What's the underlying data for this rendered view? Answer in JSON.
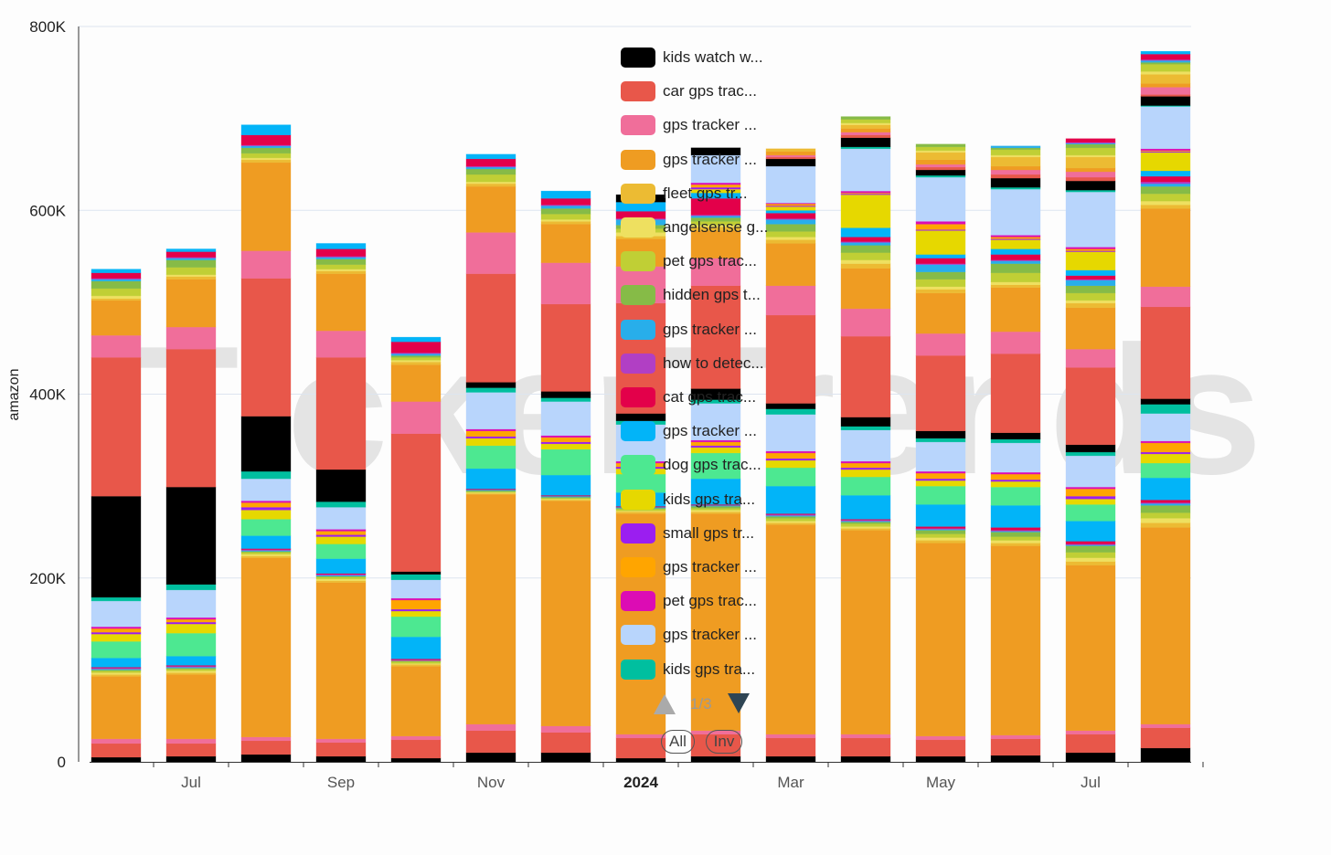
{
  "watermark": "TickerTrends",
  "chart_data": {
    "type": "bar",
    "stacked": true,
    "ylabel": "amazon",
    "ylim": [
      0,
      800000
    ],
    "yticks": [
      {
        "v": 0,
        "label": "0"
      },
      {
        "v": 200000,
        "label": "200K"
      },
      {
        "v": 400000,
        "label": "400K"
      },
      {
        "v": 600000,
        "label": "600K"
      },
      {
        "v": 800000,
        "label": "800K"
      }
    ],
    "x_tick_labels": [
      null,
      "Jul",
      null,
      "Sep",
      null,
      "Nov",
      null,
      "2024",
      null,
      "Mar",
      null,
      "May",
      null,
      "Jul",
      null
    ],
    "value_unit": "thousands",
    "palette": [
      "#000000",
      "#e8574a",
      "#f06e9a",
      "#ef9c22",
      "#ecbb33",
      "#eee060",
      "#c0cf35",
      "#86bb47",
      "#28aeea",
      "#b13fc4",
      "#e3004a",
      "#02b4f8",
      "#4de891",
      "#e6d800",
      "#9b1ef0",
      "#ffa500",
      "#dc0cb4",
      "#b8d5fc",
      "#00bf9f"
    ],
    "series": [
      {
        "name": "kids watch w...",
        "values": [
          5,
          6,
          8,
          6,
          4,
          10,
          10,
          4,
          6,
          6,
          6,
          6,
          7,
          10,
          15
        ]
      },
      {
        "name": "car gps trac...",
        "values": [
          15,
          14,
          15,
          15,
          20,
          24,
          22,
          22,
          24,
          20,
          20,
          18,
          18,
          20,
          22
        ]
      },
      {
        "name": "gps tracker ...",
        "values": [
          5,
          5,
          4,
          4,
          4,
          7,
          7,
          4,
          4,
          4,
          4,
          4,
          4,
          4,
          4
        ]
      },
      {
        "name": "gps tracker ...",
        "values": [
          68,
          70,
          195,
          170,
          76,
          250,
          245,
          240,
          236,
          228,
          222,
          210,
          206,
          180,
          214
        ]
      },
      {
        "name": "fleet gps tr...",
        "values": [
          2,
          2,
          2,
          2,
          2,
          1,
          1,
          2,
          2,
          2,
          2,
          3,
          3,
          4,
          5
        ]
      },
      {
        "name": "angelsense g...",
        "values": [
          2,
          2,
          2,
          2,
          1,
          1,
          1,
          1,
          2,
          2,
          2,
          3,
          3,
          4,
          5
        ]
      },
      {
        "name": "pet gps trac...",
        "values": [
          2,
          2,
          2,
          2,
          2,
          1,
          1,
          2,
          2,
          3,
          3,
          4,
          4,
          6,
          6
        ]
      },
      {
        "name": "hidden gps t...",
        "values": [
          1,
          1,
          1,
          1,
          1,
          1,
          1,
          1,
          2,
          2,
          2,
          4,
          5,
          7,
          8
        ]
      },
      {
        "name": "gps tracker ...",
        "values": [
          1,
          1,
          1,
          1,
          0,
          1,
          1,
          1,
          1,
          1,
          1,
          1,
          1,
          1,
          2
        ]
      },
      {
        "name": "how to detec...",
        "values": [
          1,
          1,
          1,
          1,
          1,
          0,
          0,
          0,
          0,
          1,
          1,
          1,
          1,
          1,
          1
        ]
      },
      {
        "name": "cat gps trac...",
        "values": [
          1,
          1,
          1,
          1,
          1,
          1,
          1,
          1,
          1,
          1,
          1,
          2,
          3,
          3,
          3
        ]
      },
      {
        "name": "gps tracker ...",
        "values": [
          10,
          10,
          14,
          16,
          24,
          22,
          22,
          15,
          28,
          30,
          26,
          24,
          24,
          22,
          24
        ]
      },
      {
        "name": "dog gps trac...",
        "values": [
          18,
          25,
          18,
          16,
          22,
          25,
          28,
          20,
          28,
          20,
          20,
          20,
          20,
          18,
          16
        ]
      },
      {
        "name": "kids gps tra...",
        "values": [
          8,
          10,
          10,
          8,
          6,
          8,
          6,
          6,
          6,
          8,
          8,
          6,
          6,
          6,
          10
        ]
      },
      {
        "name": "small gps tr...",
        "values": [
          2,
          2,
          3,
          2,
          2,
          2,
          2,
          2,
          2,
          2,
          2,
          2,
          2,
          3,
          2
        ]
      },
      {
        "name": "gps tracker ...",
        "values": [
          4,
          3,
          5,
          4,
          10,
          6,
          5,
          4,
          4,
          6,
          5,
          6,
          6,
          8,
          10
        ]
      },
      {
        "name": "pet gps trac...",
        "values": [
          2,
          2,
          2,
          2,
          2,
          2,
          2,
          2,
          2,
          2,
          2,
          2,
          2,
          2,
          2
        ]
      },
      {
        "name": "gps tracker ...",
        "values": [
          28,
          30,
          24,
          24,
          20,
          40,
          37,
          40,
          40,
          40,
          34,
          32,
          32,
          34,
          30
        ]
      },
      {
        "name": "kids gps tra...",
        "values": [
          4,
          6,
          8,
          6,
          6,
          5,
          4,
          4,
          4,
          6,
          4,
          4,
          4,
          4,
          10
        ]
      },
      {
        "name": "",
        "values": [
          110,
          106,
          60,
          35,
          3,
          6,
          7,
          8,
          12,
          6,
          10,
          8,
          7,
          8,
          6
        ]
      },
      {
        "name": "",
        "values": [
          151,
          150,
          150,
          122,
          150,
          118,
          95,
          120,
          112,
          96,
          88,
          82,
          86,
          84,
          100
        ]
      },
      {
        "name": "",
        "values": [
          24,
          24,
          30,
          29,
          35,
          45,
          45,
          40,
          30,
          32,
          30,
          24,
          24,
          20,
          22
        ]
      },
      {
        "name": "",
        "values": [
          38,
          52,
          96,
          62,
          40,
          50,
          42,
          30,
          30,
          46,
          44,
          44,
          48,
          45,
          85
        ]
      },
      {
        "name": "",
        "values": [
          2,
          3,
          3,
          3,
          3,
          3,
          3,
          3,
          4,
          4,
          5,
          4,
          3,
          5,
          4
        ]
      },
      {
        "name": "",
        "values": [
          3,
          2,
          2,
          2,
          2,
          2,
          2,
          4,
          2,
          3,
          4,
          3,
          3,
          3,
          4
        ]
      },
      {
        "name": "",
        "values": [
          8,
          8,
          5,
          5,
          3,
          8,
          6,
          4,
          4,
          6,
          8,
          8,
          10,
          8,
          8
        ]
      },
      {
        "name": "",
        "values": [
          8,
          8,
          6,
          6,
          2,
          6,
          6,
          4,
          4,
          8,
          8,
          8,
          10,
          8,
          8
        ]
      },
      {
        "name": "",
        "values": [
          2,
          2,
          2,
          2,
          2,
          2,
          3,
          6,
          2,
          5,
          3,
          8,
          3,
          6,
          3
        ]
      },
      {
        "name": "",
        "values": [
          1,
          1,
          1,
          1,
          1,
          1,
          1,
          1,
          1,
          1,
          1,
          1,
          1,
          1,
          2
        ]
      },
      {
        "name": "",
        "values": [
          6,
          6,
          11,
          8,
          12,
          8,
          7,
          8,
          18,
          6,
          5,
          6,
          6,
          4,
          6
        ]
      },
      {
        "name": "",
        "values": [
          4,
          3,
          11,
          6,
          5,
          5,
          8,
          10,
          6,
          3,
          10,
          4,
          6,
          6,
          6
        ]
      },
      {
        "name": "",
        "values": [
          0,
          0,
          0,
          0,
          0,
          0,
          0,
          0,
          0,
          0,
          0,
          0,
          0,
          0,
          0
        ]
      },
      {
        "name": "",
        "values": [
          0,
          0,
          0,
          0,
          0,
          0,
          0,
          0,
          4,
          4,
          36,
          26,
          10,
          20,
          20
        ]
      },
      {
        "name": "",
        "values": [
          0,
          0,
          0,
          0,
          0,
          0,
          0,
          0,
          2,
          1,
          1,
          1,
          1,
          1,
          1
        ]
      },
      {
        "name": "",
        "values": [
          0,
          0,
          0,
          0,
          0,
          0,
          0,
          0,
          3,
          2,
          1,
          6,
          2,
          2,
          1
        ]
      },
      {
        "name": "",
        "values": [
          0,
          0,
          0,
          0,
          0,
          0,
          0,
          0,
          2,
          1,
          2,
          3,
          2,
          2,
          2
        ]
      },
      {
        "name": "",
        "values": [
          0,
          0,
          0,
          0,
          0,
          0,
          0,
          0,
          30,
          40,
          46,
          48,
          50,
          60,
          46
        ]
      },
      {
        "name": "",
        "values": [
          0,
          0,
          0,
          0,
          0,
          0,
          0,
          0,
          0,
          0,
          2,
          2,
          2,
          2,
          1
        ]
      },
      {
        "name": "",
        "values": [
          0,
          0,
          0,
          0,
          0,
          0,
          0,
          8,
          8,
          8,
          10,
          6,
          10,
          10,
          10
        ]
      },
      {
        "name": "",
        "values": [
          0,
          0,
          0,
          0,
          0,
          0,
          0,
          0,
          0,
          2,
          3,
          3,
          4,
          4,
          2
        ]
      },
      {
        "name": "",
        "values": [
          0,
          0,
          0,
          0,
          0,
          0,
          0,
          0,
          0,
          2,
          3,
          3,
          5,
          6,
          8
        ]
      },
      {
        "name": "",
        "values": [
          0,
          0,
          0,
          0,
          0,
          0,
          0,
          0,
          0,
          4,
          4,
          5,
          4,
          4,
          4
        ]
      },
      {
        "name": "",
        "values": [
          0,
          0,
          0,
          0,
          0,
          0,
          0,
          0,
          0,
          3,
          4,
          8,
          10,
          12,
          10
        ]
      },
      {
        "name": "",
        "values": [
          0,
          0,
          0,
          0,
          0,
          0,
          0,
          0,
          0,
          0,
          2,
          2,
          2,
          2,
          3
        ]
      },
      {
        "name": "",
        "values": [
          0,
          0,
          0,
          0,
          0,
          0,
          0,
          0,
          0,
          0,
          4,
          4,
          6,
          8,
          8
        ]
      },
      {
        "name": "",
        "values": [
          0,
          0,
          0,
          0,
          0,
          0,
          0,
          0,
          0,
          0,
          3,
          3,
          2,
          4,
          2
        ]
      },
      {
        "name": "",
        "values": [
          0,
          0,
          0,
          0,
          0,
          0,
          0,
          0,
          0,
          0,
          0,
          0,
          2,
          1,
          2
        ]
      },
      {
        "name": "",
        "values": [
          0,
          0,
          0,
          0,
          0,
          0,
          0,
          0,
          0,
          0,
          0,
          0,
          0,
          1,
          1
        ]
      },
      {
        "name": "",
        "values": [
          0,
          0,
          0,
          0,
          0,
          0,
          0,
          0,
          0,
          0,
          0,
          0,
          0,
          4,
          6
        ]
      },
      {
        "name": "",
        "values": [
          0,
          0,
          0,
          0,
          0,
          0,
          0,
          0,
          0,
          0,
          0,
          0,
          0,
          0,
          3
        ]
      }
    ],
    "legend": {
      "position": "center-right",
      "page": "1/3",
      "all_label": "All",
      "inverse_label": "Inv"
    }
  }
}
